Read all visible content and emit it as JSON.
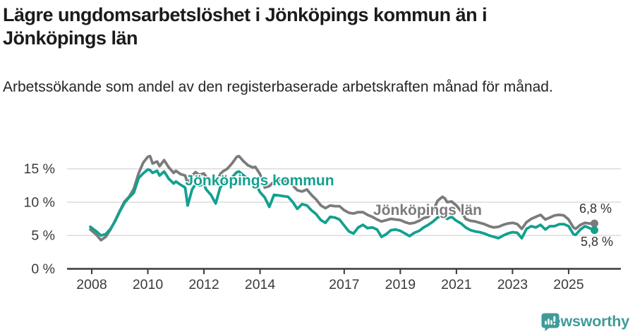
{
  "header": {
    "title": "Lägre ungdomsarbetslöshet i Jönköpings kommun än i Jönköpings län",
    "subtitle": "Arbetssökande som andel av den registerbaserade arbetskraften månad för månad."
  },
  "footer": {
    "brand": "Newsworthy",
    "brand_color": "#3f9b98",
    "icon": "speech-bubble-bar-chart-icon"
  },
  "chart_data": {
    "type": "line",
    "title": "Lägre ungdomsarbetslöshet i Jönköpings kommun än i Jönköpings län",
    "xlabel": "",
    "ylabel": "",
    "grid": true,
    "legend_position": "inline-labels",
    "x_ticks": [
      2008,
      2010,
      2012,
      2014,
      2017,
      2019,
      2021,
      2023,
      2025
    ],
    "y_ticks": [
      0,
      5,
      10,
      15
    ],
    "y_tick_suffix": " %",
    "xlim": [
      2007.9,
      2026.2
    ],
    "ylim": [
      0,
      17.6
    ],
    "x": [
      2007.95,
      2008.17,
      2008.33,
      2008.5,
      2008.67,
      2008.83,
      2009,
      2009.17,
      2009.33,
      2009.5,
      2009.67,
      2009.83,
      2010,
      2010.08,
      2010.17,
      2010.33,
      2010.42,
      2010.58,
      2010.75,
      2010.92,
      2011,
      2011.17,
      2011.33,
      2011.42,
      2011.58,
      2011.7,
      2011.83,
      2012,
      2012.08,
      2012.25,
      2012.42,
      2012.58,
      2012.67,
      2012.83,
      2013,
      2013.17,
      2013.25,
      2013.42,
      2013.58,
      2013.75,
      2013.83,
      2014,
      2014.17,
      2014.33,
      2014.5,
      2014.67,
      2014.83,
      2015,
      2015.17,
      2015.33,
      2015.5,
      2015.67,
      2015.83,
      2016,
      2016.17,
      2016.33,
      2016.5,
      2016.67,
      2016.83,
      2017,
      2017.17,
      2017.33,
      2017.5,
      2017.67,
      2017.83,
      2018,
      2018.17,
      2018.33,
      2018.5,
      2018.67,
      2018.83,
      2019,
      2019.17,
      2019.33,
      2019.5,
      2019.67,
      2019.83,
      2020,
      2020.17,
      2020.33,
      2020.5,
      2020.58,
      2020.67,
      2020.83,
      2021,
      2021.17,
      2021.33,
      2021.5,
      2021.67,
      2021.83,
      2022,
      2022.17,
      2022.33,
      2022.5,
      2022.67,
      2022.83,
      2023,
      2023.17,
      2023.33,
      2023.5,
      2023.67,
      2023.83,
      2024,
      2024.17,
      2024.33,
      2024.5,
      2024.67,
      2024.83,
      2025,
      2025.17,
      2025.25,
      2025.42,
      2025.58,
      2025.75,
      2025.92
    ],
    "series": [
      {
        "name": "Jönköpings län",
        "color": "#7b7b7b",
        "end_label": "6,8 %",
        "end_value": 6.8,
        "values": [
          5.9,
          5.1,
          4.3,
          4.8,
          5.9,
          7.2,
          8.7,
          10.1,
          10.8,
          12.0,
          14.3,
          15.9,
          16.8,
          16.9,
          15.8,
          16.1,
          15.4,
          16.3,
          15.2,
          14.4,
          14.7,
          14.2,
          14.0,
          12.8,
          14.0,
          14.5,
          14.1,
          14.3,
          13.8,
          13.4,
          12.7,
          14.2,
          14.6,
          15.0,
          15.8,
          16.8,
          16.9,
          16.1,
          15.5,
          15.2,
          15.3,
          14.2,
          12.2,
          12.4,
          13.1,
          13.4,
          13.2,
          13.1,
          12.5,
          11.8,
          11.6,
          11.9,
          11.1,
          10.4,
          9.5,
          9.1,
          9.5,
          9.4,
          9.4,
          8.8,
          8.4,
          8.3,
          8.5,
          8.5,
          8.1,
          7.8,
          7.4,
          7.1,
          7.3,
          7.5,
          7.4,
          7.3,
          7.0,
          6.8,
          6.9,
          7.2,
          7.6,
          7.8,
          8.7,
          10.2,
          10.8,
          10.6,
          10.0,
          10.1,
          9.5,
          8.6,
          7.5,
          7.2,
          7.1,
          6.9,
          6.7,
          6.4,
          6.2,
          6.3,
          6.6,
          6.8,
          6.9,
          6.7,
          6.0,
          7.0,
          7.5,
          7.8,
          8.1,
          7.4,
          7.7,
          8.0,
          8.1,
          8.0,
          7.4,
          6.2,
          6.0,
          6.6,
          6.9,
          6.8,
          6.8
        ]
      },
      {
        "name": "Jönköpings kommun",
        "color": "#13a08f",
        "end_label": "5,8 %",
        "end_value": 5.8,
        "values": [
          6.3,
          5.6,
          5.0,
          5.2,
          6.0,
          7.1,
          8.6,
          9.9,
          10.7,
          11.4,
          13.6,
          14.3,
          14.9,
          14.8,
          14.4,
          14.7,
          14.0,
          14.6,
          13.5,
          12.8,
          13.1,
          12.6,
          12.2,
          9.5,
          11.9,
          12.7,
          12.5,
          12.7,
          11.9,
          11.1,
          9.8,
          12.2,
          12.7,
          13.1,
          13.7,
          14.5,
          14.6,
          14.0,
          13.4,
          12.9,
          12.8,
          11.5,
          10.7,
          9.3,
          11.1,
          11.0,
          10.9,
          10.8,
          10.0,
          9.0,
          9.7,
          9.5,
          8.8,
          8.2,
          7.3,
          6.9,
          7.8,
          7.7,
          7.4,
          6.5,
          5.6,
          5.3,
          6.2,
          6.6,
          6.1,
          6.2,
          5.9,
          4.8,
          5.2,
          5.8,
          5.9,
          5.7,
          5.3,
          4.9,
          5.4,
          5.7,
          6.2,
          6.6,
          7.1,
          7.7,
          8.0,
          7.8,
          7.5,
          7.8,
          7.2,
          6.8,
          6.2,
          5.8,
          5.6,
          5.5,
          5.3,
          5.0,
          4.8,
          4.6,
          5.0,
          5.3,
          5.5,
          5.4,
          4.6,
          6.0,
          6.4,
          6.2,
          6.6,
          5.9,
          6.4,
          6.4,
          6.7,
          6.7,
          6.4,
          5.2,
          5.1,
          5.9,
          6.4,
          6.1,
          5.8
        ]
      }
    ]
  }
}
